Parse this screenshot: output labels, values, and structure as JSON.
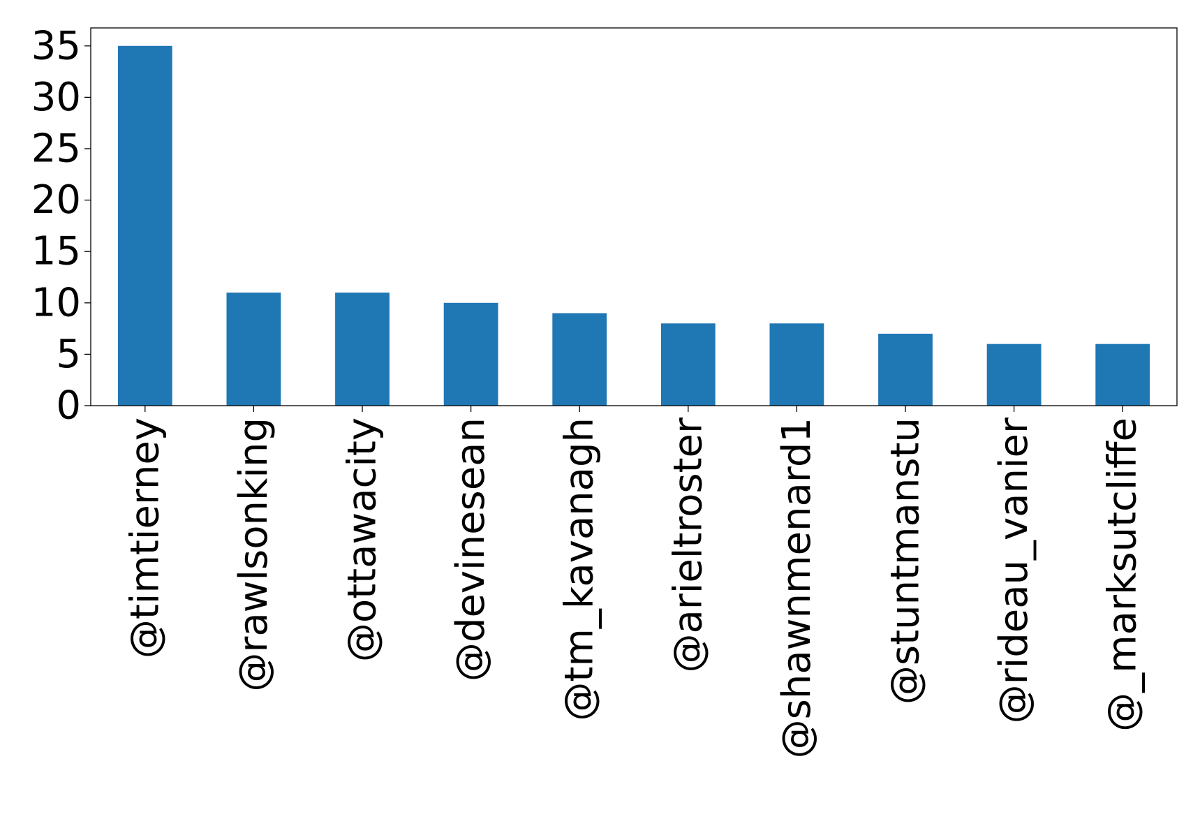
{
  "chart_data": {
    "type": "bar",
    "title": "",
    "xlabel": "",
    "ylabel": "",
    "categories": [
      "@timtierney",
      "@rawlsonking",
      "@ottawacity",
      "@devinesean",
      "@tm_kavanagh",
      "@arieltroster",
      "@shawnmenard1",
      "@stuntmanstu",
      "@rideau_vanier",
      "@_marksutcliffe"
    ],
    "values": [
      35,
      11,
      11,
      10,
      9,
      8,
      8,
      7,
      6,
      6
    ],
    "ylim": [
      0,
      36.75
    ],
    "yticks": [
      0,
      5,
      10,
      15,
      20,
      25,
      30,
      35
    ],
    "grid": false,
    "legend": "none",
    "colors": {
      "bar": "#1f77b4",
      "axis": "#000000",
      "background": "#ffffff"
    }
  }
}
